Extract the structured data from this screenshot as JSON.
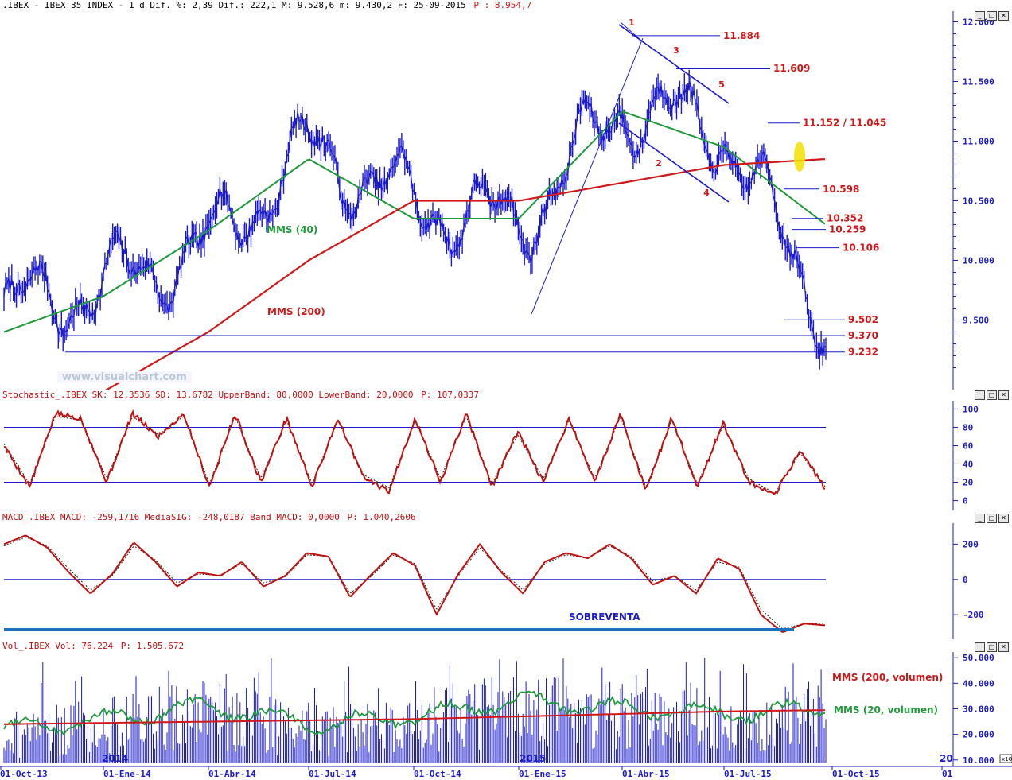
{
  "headers": {
    "main": ".IBEX - IBEX 35 INDEX -  1 d Dif. %: 2,39 Dif.: 222,1 M: 9.528,6 m: 9.430,2 F: 25-09-2015",
    "main_p": "P : 8.954,7",
    "stoch": "Stochastic_.IBEX SK: 12,3536 SD: 13,6782 UpperBand: 80,0000 LowerBand: 20,0000",
    "stoch_p": "P: 107,0337",
    "macd": "MACD_.IBEX MACD: -259,1716 MediaSIG: -248,0187 Band_MACD: 0,0000",
    "macd_p": "P: 1.040,2606",
    "vol": "Vol_.IBEX Vol: 76.224",
    "vol_p": "P: 1.505.672"
  },
  "window_buttons": [
    "minimize-icon",
    "maximize-icon",
    "close-icon"
  ],
  "watermark": "www.visualchart.com",
  "x_axis": {
    "labels": [
      "01-Oct-13",
      "01-Ene-14",
      "01-Abr-14",
      "01-Jul-14",
      "01-Oct-14",
      "01-Ene-15",
      "01-Abr-15",
      "01-Jul-15",
      "01-Oct-15",
      "01"
    ],
    "year_marks": [
      "2014",
      "2015"
    ],
    "edge_mark": "20",
    "scale_badge": "x10"
  },
  "colors": {
    "price": "#1a1acc",
    "mms40": "#1f9a3a",
    "mms200": "#d01818",
    "level_line": "#1a1acc",
    "annot_red": "#d01818",
    "highlight": "#f5e000",
    "oversold_bar": "#1f6fbf"
  },
  "chart_data": [
    {
      "panel": "price",
      "type": "line",
      "title": ".IBEX - IBEX 35 INDEX -  1 d",
      "y_ticks": [
        "12.000",
        "11.500",
        "11.000",
        "10.500",
        "10.000",
        "9.500"
      ],
      "ylim": [
        9050,
        12050
      ],
      "x": [
        "01-Oct-13",
        "01-Ene-14",
        "01-Abr-14",
        "01-Jul-14",
        "01-Oct-14",
        "01-Ene-15",
        "01-Abr-15",
        "01-Jul-15",
        "25-09-2015"
      ],
      "series": [
        {
          "name": "",
          "key": "price",
          "values": [
            9590,
            9780,
            10120,
            10940,
            10480,
            10300,
            11300,
            11080,
            9528
          ]
        },
        {
          "name": "MMS (40)",
          "key": "mms40",
          "values": [
            9400,
            9700,
            10250,
            10850,
            10350,
            10350,
            11250,
            10950,
            10300
          ]
        },
        {
          "name": "MMS (200)",
          "key": "mms200",
          "values": [
            null,
            8900,
            9400,
            10000,
            10500,
            10500,
            10650,
            10800,
            10850
          ]
        }
      ],
      "levels": [
        "11.884",
        "11.609",
        "11.152 / 11.045",
        "10.598",
        "10.352",
        "10.259",
        "10.106",
        "9.502",
        "9.370",
        "9.232"
      ],
      "wave_labels": [
        "1",
        "2",
        "3",
        "4",
        "5"
      ]
    },
    {
      "panel": "stochastic",
      "type": "line",
      "y_ticks": [
        "100",
        "80",
        "60",
        "40",
        "20",
        "0"
      ],
      "ylim": [
        -3,
        103
      ],
      "bands": [
        80,
        20
      ],
      "series": [
        {
          "name": "SK",
          "values": [
            60,
            15,
            95,
            90,
            20,
            95,
            70,
            95,
            15,
            95,
            20,
            90,
            15,
            90,
            25,
            10,
            90,
            20,
            95,
            15,
            75,
            20,
            90,
            20,
            95,
            10,
            90,
            15,
            85,
            20,
            5,
            55,
            12
          ]
        },
        {
          "name": "SD",
          "values": [
            62,
            18,
            92,
            88,
            24,
            92,
            72,
            92,
            18,
            92,
            24,
            88,
            18,
            88,
            28,
            14,
            88,
            24,
            92,
            18,
            72,
            24,
            88,
            24,
            92,
            14,
            88,
            18,
            82,
            24,
            8,
            52,
            14
          ]
        }
      ]
    },
    {
      "panel": "macd",
      "type": "line",
      "y_ticks": [
        "200",
        "0",
        "-200"
      ],
      "ylim": [
        -330,
        310
      ],
      "zero_line": 0,
      "annotation": "SOBREVENTA",
      "series": [
        {
          "name": "MACD",
          "values": [
            200,
            250,
            180,
            40,
            -80,
            30,
            210,
            100,
            -40,
            40,
            20,
            100,
            -40,
            20,
            150,
            130,
            -100,
            30,
            150,
            80,
            -200,
            30,
            200,
            40,
            -80,
            100,
            150,
            120,
            200,
            120,
            -30,
            20,
            -80,
            120,
            60,
            -200,
            -300,
            -250,
            -260
          ]
        },
        {
          "name": "MediaSIG",
          "values": [
            190,
            240,
            190,
            60,
            -60,
            20,
            190,
            110,
            -20,
            30,
            25,
            90,
            -20,
            15,
            140,
            130,
            -80,
            20,
            140,
            90,
            -170,
            20,
            180,
            50,
            -60,
            90,
            140,
            120,
            190,
            130,
            -10,
            20,
            -60,
            100,
            70,
            -170,
            -280,
            -250,
            -248
          ]
        }
      ]
    },
    {
      "panel": "volume",
      "type": "bar",
      "y_ticks": [
        "50.000",
        "40.000",
        "30.000",
        "20.000",
        "10.000"
      ],
      "ylim": [
        9000,
        51000
      ],
      "series": [
        {
          "name": "MMS (200, volumen)",
          "key": "mms200v",
          "values": [
            24000,
            24500,
            25000,
            25500,
            26000,
            27000,
            28000,
            29000,
            29500
          ]
        },
        {
          "name": "MMS (20, volumen)",
          "key": "mms20v",
          "values": [
            22000,
            26000,
            31000,
            24000,
            27000,
            33000,
            30000,
            28000,
            30000
          ]
        }
      ]
    }
  ]
}
